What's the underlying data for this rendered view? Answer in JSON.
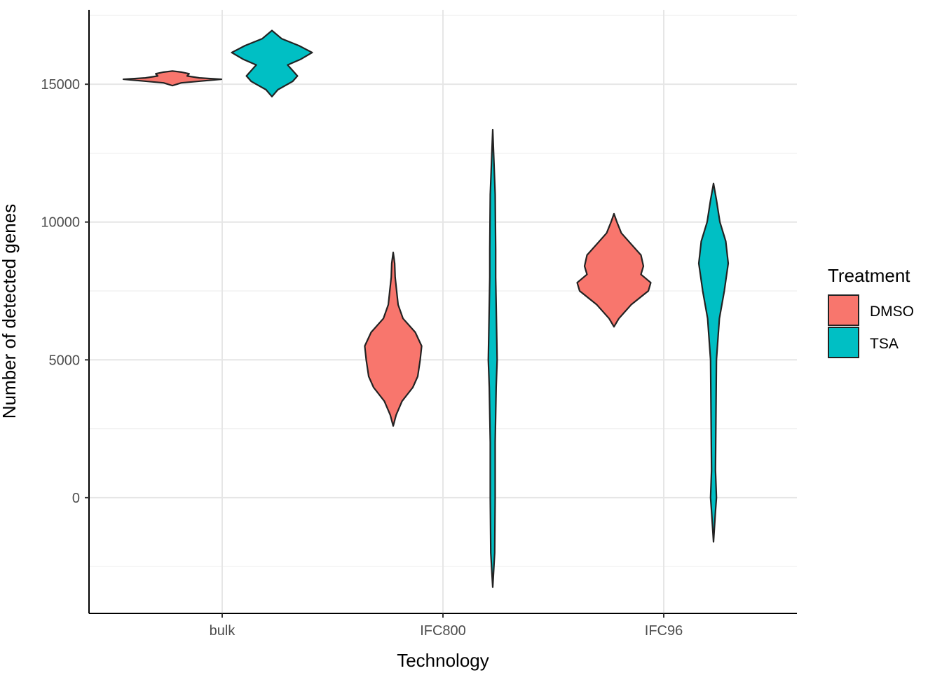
{
  "chart_data": {
    "type": "violin",
    "xlabel": "Technology",
    "ylabel": "Number of detected genes",
    "categories": [
      "bulk",
      "IFC800",
      "IFC96"
    ],
    "ylim": [
      -4200,
      17700
    ],
    "yticks": [
      0,
      5000,
      10000,
      15000
    ],
    "grid": true,
    "legend": {
      "title": "Treatment",
      "placement": "right",
      "entries": [
        {
          "label": "DMSO",
          "color": "#F8766D"
        },
        {
          "label": "TSA",
          "color": "#00BFC4"
        }
      ]
    },
    "series": [
      {
        "name": "DMSO",
        "color": "#F8766D",
        "violins": [
          {
            "category": "bulk",
            "min": 14950,
            "max": 15480,
            "profile": [
              [
                14950,
                0.0
              ],
              [
                15050,
                0.18
              ],
              [
                15120,
                0.62
              ],
              [
                15180,
                1.0
              ],
              [
                15230,
                0.55
              ],
              [
                15300,
                0.3
              ],
              [
                15380,
                0.34
              ],
              [
                15440,
                0.18
              ],
              [
                15480,
                0.0
              ]
            ]
          },
          {
            "category": "IFC800",
            "min": 2600,
            "max": 8900,
            "profile": [
              [
                2600,
                0.0
              ],
              [
                3000,
                0.06
              ],
              [
                3500,
                0.18
              ],
              [
                4000,
                0.4
              ],
              [
                4400,
                0.5
              ],
              [
                5000,
                0.55
              ],
              [
                5500,
                0.58
              ],
              [
                6000,
                0.45
              ],
              [
                6500,
                0.2
              ],
              [
                7000,
                0.1
              ],
              [
                7500,
                0.07
              ],
              [
                8000,
                0.04
              ],
              [
                8500,
                0.03
              ],
              [
                8900,
                0.0
              ]
            ]
          },
          {
            "category": "IFC96",
            "min": 6200,
            "max": 10300,
            "profile": [
              [
                6200,
                0.0
              ],
              [
                6500,
                0.1
              ],
              [
                7000,
                0.35
              ],
              [
                7500,
                0.7
              ],
              [
                7800,
                0.75
              ],
              [
                8100,
                0.55
              ],
              [
                8400,
                0.6
              ],
              [
                8800,
                0.55
              ],
              [
                9200,
                0.35
              ],
              [
                9600,
                0.15
              ],
              [
                10000,
                0.06
              ],
              [
                10300,
                0.0
              ]
            ]
          }
        ]
      },
      {
        "name": "TSA",
        "color": "#00BFC4",
        "violins": [
          {
            "category": "bulk",
            "min": 14550,
            "max": 16950,
            "profile": [
              [
                14550,
                0.0
              ],
              [
                14800,
                0.12
              ],
              [
                15100,
                0.42
              ],
              [
                15300,
                0.52
              ],
              [
                15500,
                0.42
              ],
              [
                15700,
                0.32
              ],
              [
                15900,
                0.58
              ],
              [
                16150,
                0.82
              ],
              [
                16400,
                0.55
              ],
              [
                16650,
                0.2
              ],
              [
                16950,
                0.0
              ]
            ]
          },
          {
            "category": "IFC800",
            "min": -3250,
            "max": 13350,
            "profile": [
              [
                -3250,
                0.0
              ],
              [
                -2000,
                0.04
              ],
              [
                0,
                0.05
              ],
              [
                2000,
                0.05
              ],
              [
                4000,
                0.07
              ],
              [
                5000,
                0.09
              ],
              [
                6000,
                0.08
              ],
              [
                8000,
                0.06
              ],
              [
                9000,
                0.06
              ],
              [
                11000,
                0.05
              ],
              [
                13350,
                0.0
              ]
            ]
          },
          {
            "category": "IFC96",
            "min": -1600,
            "max": 11400,
            "profile": [
              [
                -1600,
                0.0
              ],
              [
                -500,
                0.04
              ],
              [
                0,
                0.06
              ],
              [
                1000,
                0.04
              ],
              [
                3000,
                0.05
              ],
              [
                5000,
                0.06
              ],
              [
                6500,
                0.12
              ],
              [
                7500,
                0.22
              ],
              [
                8500,
                0.3
              ],
              [
                9300,
                0.25
              ],
              [
                10000,
                0.13
              ],
              [
                10800,
                0.06
              ],
              [
                11400,
                0.0
              ]
            ]
          }
        ]
      }
    ]
  }
}
